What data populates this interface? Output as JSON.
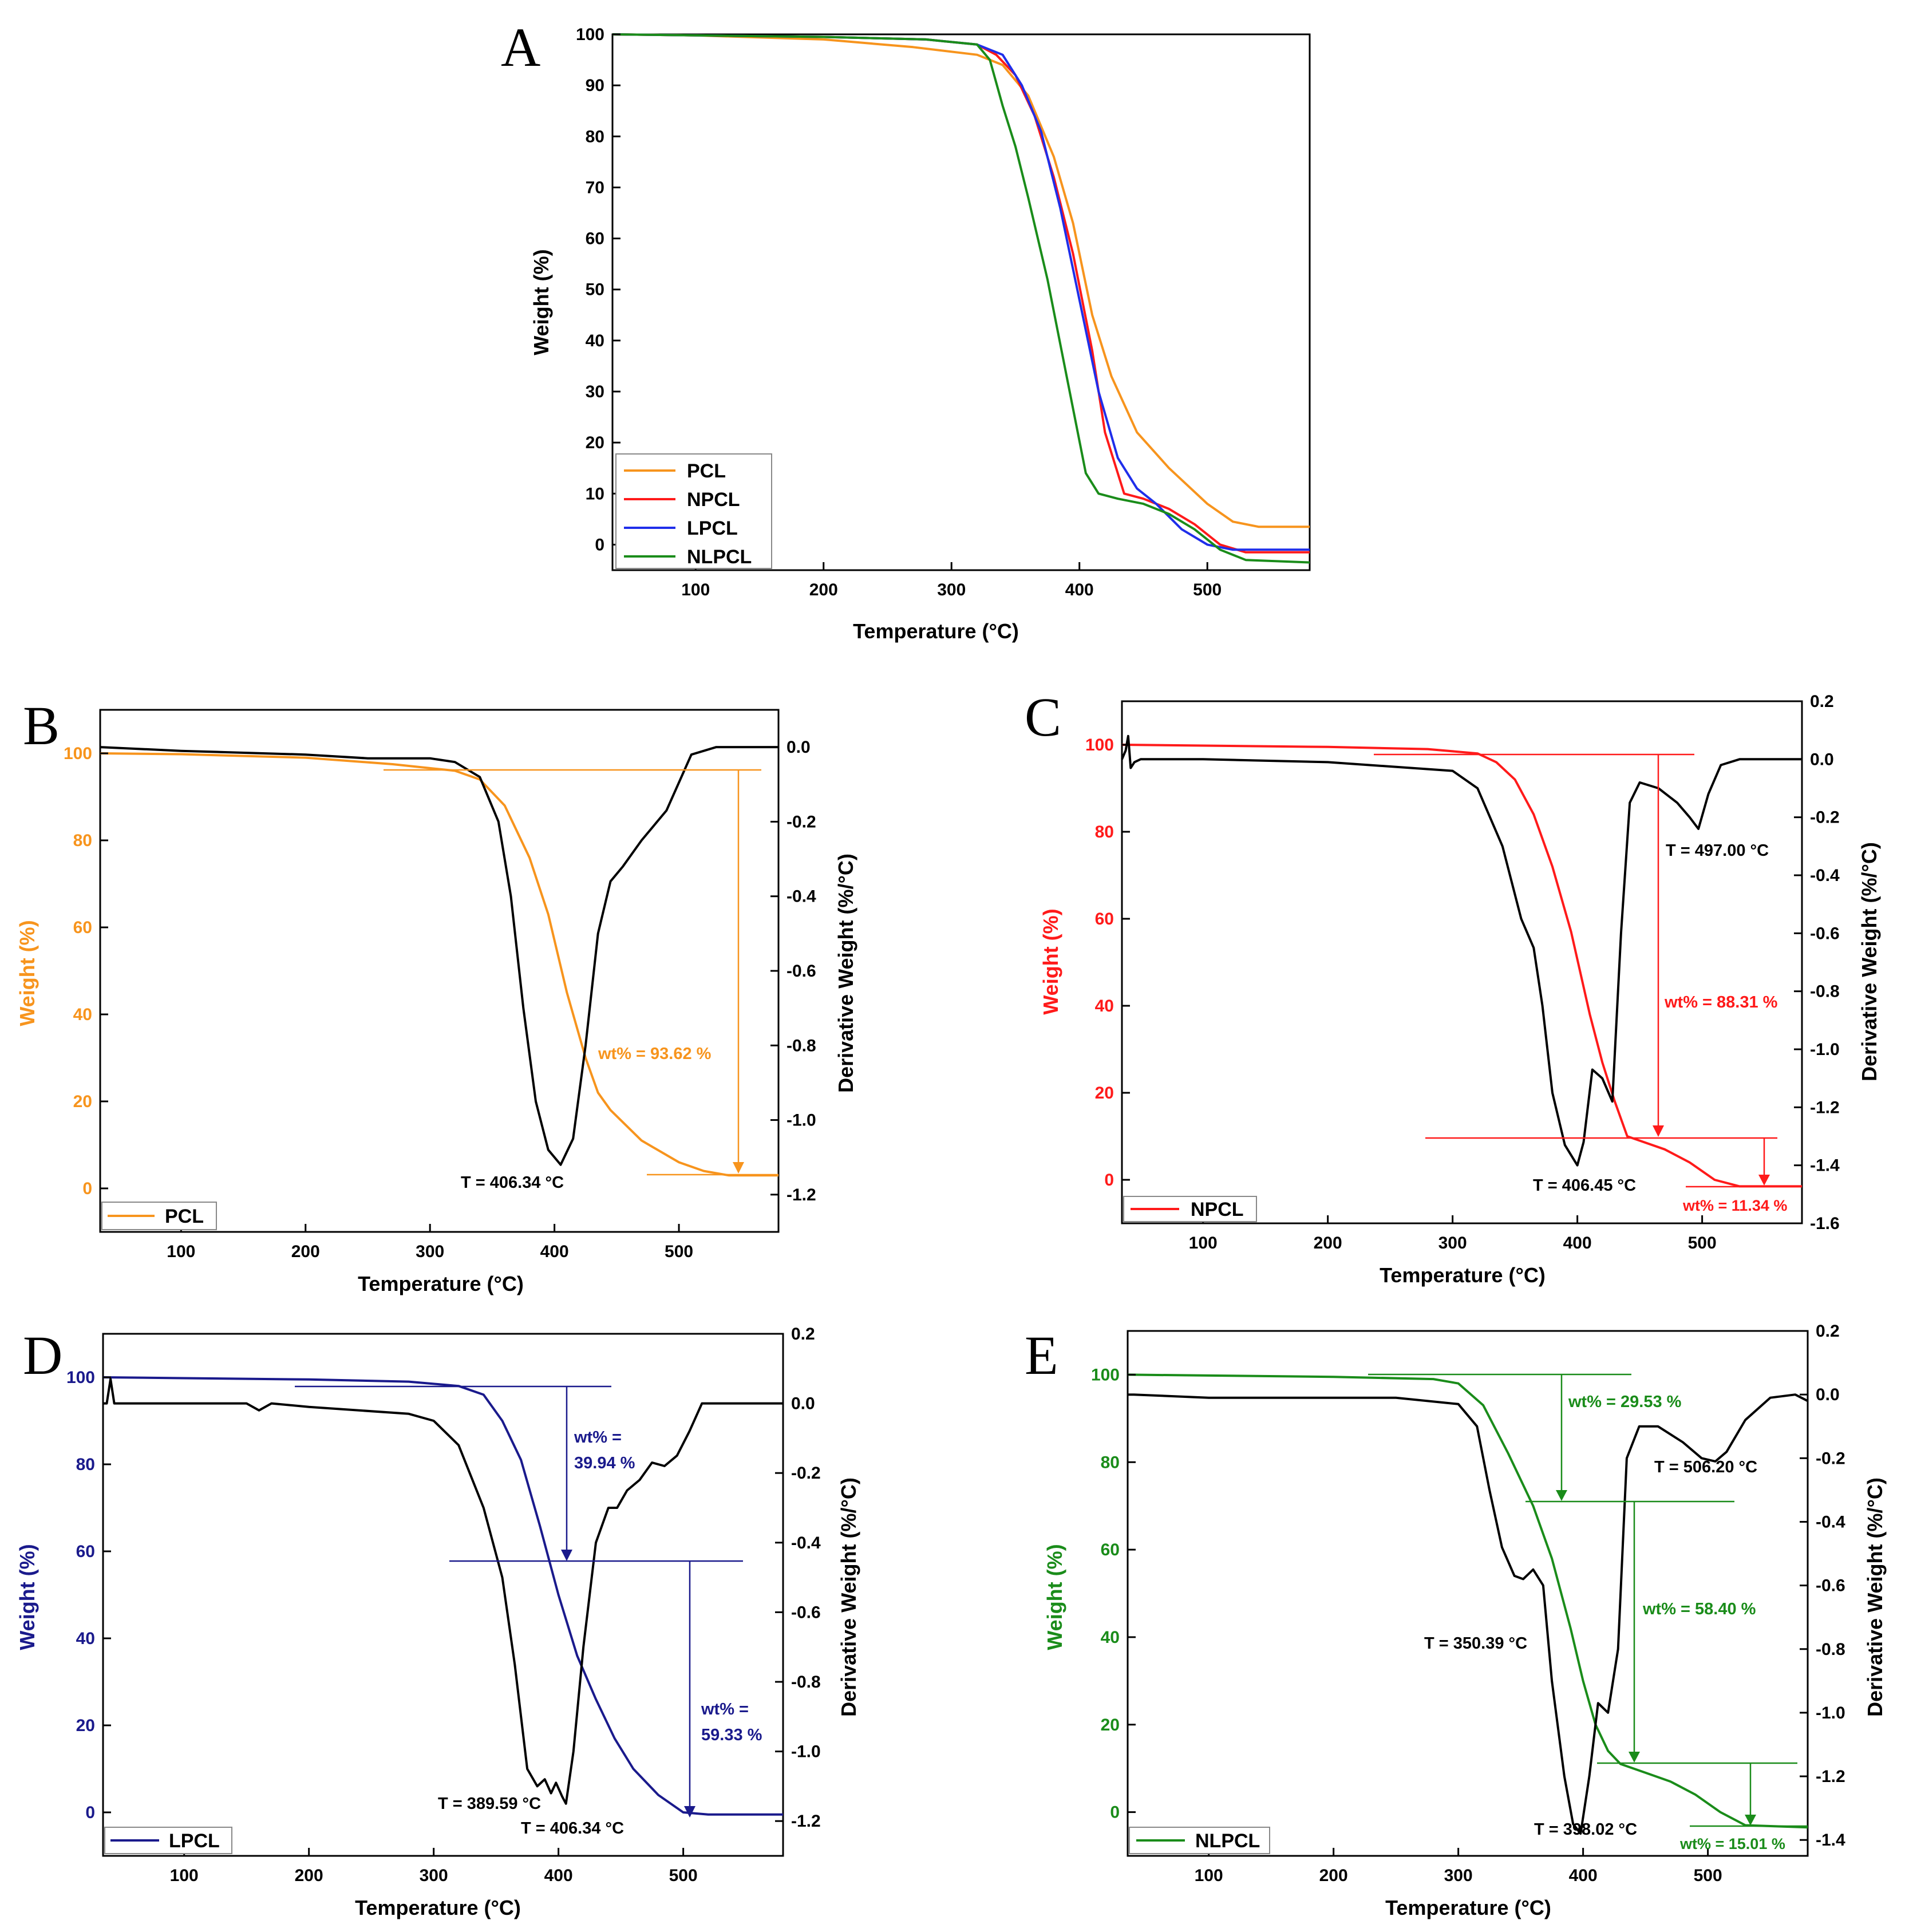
{
  "panel_letters": {
    "A": "A",
    "B": "B",
    "C": "C",
    "D": "D",
    "E": "E"
  },
  "colors": {
    "PCL": "#f7941d",
    "NPCL": "#ff1a1a",
    "LPCL": "#1a1a8c",
    "LPCL_A": "#1f2eea",
    "NLPCL": "#1a8c1a",
    "black": "#000000"
  },
  "chart_data": [
    {
      "panel": "A",
      "type": "line",
      "xlabel": "Temperature (°C)",
      "ylabel": "Weight (%)",
      "xlim": [
        35,
        580
      ],
      "ylim": [
        -5,
        100
      ],
      "xticks": [
        "100",
        "200",
        "300",
        "400",
        "500"
      ],
      "yticks": [
        "0",
        "10",
        "20",
        "30",
        "40",
        "50",
        "60",
        "70",
        "80",
        "90",
        "100"
      ],
      "legend": [
        "PCL",
        "NPCL",
        "LPCL",
        "NLPCL"
      ],
      "series": [
        {
          "name": "PCL",
          "x": [
            35,
            100,
            200,
            270,
            320,
            340,
            360,
            380,
            395,
            410,
            425,
            445,
            470,
            500,
            520,
            540,
            580
          ],
          "y": [
            100,
            99.8,
            99,
            97.5,
            96,
            94,
            88,
            76,
            63,
            45,
            33,
            22,
            15,
            8,
            4.5,
            3.5,
            3.5
          ]
        },
        {
          "name": "NPCL",
          "x": [
            35,
            100,
            200,
            280,
            320,
            335,
            350,
            365,
            380,
            395,
            410,
            420,
            435,
            450,
            470,
            490,
            510,
            530,
            580
          ],
          "y": [
            100,
            99.8,
            99.5,
            99,
            98,
            96,
            92,
            84,
            72,
            57,
            38,
            22,
            10,
            9,
            7,
            4,
            0,
            -1.5,
            -1.5
          ]
        },
        {
          "name": "LPCL",
          "x": [
            35,
            100,
            200,
            280,
            320,
            340,
            355,
            370,
            385,
            400,
            415,
            430,
            445,
            460,
            480,
            500,
            520,
            580
          ],
          "y": [
            100,
            99.8,
            99.5,
            99,
            98,
            96,
            90,
            81,
            66,
            48,
            30,
            17,
            11,
            8,
            3,
            0,
            -1,
            -1
          ]
        },
        {
          "name": "NLPCL",
          "x": [
            35,
            100,
            200,
            280,
            320,
            330,
            340,
            350,
            360,
            375,
            390,
            405,
            415,
            430,
            450,
            470,
            490,
            510,
            530,
            580
          ],
          "y": [
            100,
            99.8,
            99.5,
            99,
            98,
            95,
            86,
            78,
            68,
            52,
            33,
            14,
            10,
            9,
            8,
            6,
            3,
            -1,
            -3,
            -3.5
          ]
        }
      ]
    },
    {
      "panel": "B",
      "type": "line",
      "xlabel": "Temperature (°C)",
      "ylabel_left": "Weight (%)",
      "ylabel_right": "Derivative Weight (%/°C)",
      "xlim": [
        35,
        580
      ],
      "ylim_left": [
        -10,
        110
      ],
      "ylim_right": [
        -1.3,
        0.1
      ],
      "xticks": [
        "100",
        "200",
        "300",
        "400",
        "500"
      ],
      "yticks_left": [
        "0",
        "20",
        "40",
        "60",
        "80",
        "100"
      ],
      "yticks_right": [
        "-1.2",
        "-1.0",
        "-0.8",
        "-0.6",
        "-0.4",
        "-0.2",
        "0.0"
      ],
      "legend": [
        "PCL"
      ],
      "series": [
        {
          "name": "PCL weight",
          "axis": "left",
          "color": "#f7941d",
          "x": [
            35,
            100,
            200,
            270,
            320,
            340,
            360,
            380,
            395,
            410,
            425,
            435,
            445,
            470,
            500,
            520,
            540,
            580
          ],
          "y": [
            100,
            99.8,
            99,
            97.5,
            96,
            94,
            88,
            76,
            63,
            45,
            30,
            22,
            18,
            11,
            6,
            4,
            3,
            3
          ]
        },
        {
          "name": "PCL derivative",
          "axis": "right",
          "color": "#000000",
          "x": [
            35,
            100,
            200,
            250,
            300,
            320,
            340,
            355,
            365,
            375,
            385,
            395,
            405,
            415,
            425,
            435,
            445,
            455,
            470,
            490,
            510,
            530,
            545,
            560,
            580
          ],
          "y": [
            0.0,
            -0.01,
            -0.02,
            -0.03,
            -0.03,
            -0.04,
            -0.08,
            -0.2,
            -0.4,
            -0.7,
            -0.95,
            -1.08,
            -1.12,
            -1.05,
            -0.8,
            -0.5,
            -0.36,
            -0.32,
            -0.25,
            -0.17,
            -0.02,
            0.0,
            0.0,
            0.0,
            0.0
          ]
        }
      ],
      "annotations": [
        "wt% = 93.62 %",
        "T = 406.34 °C"
      ]
    },
    {
      "panel": "C",
      "type": "line",
      "xlabel": "Temperature (°C)",
      "ylabel_left": "Weight (%)",
      "ylabel_right": "Derivative Weight (%/°C)",
      "xlim": [
        35,
        580
      ],
      "ylim_left": [
        -10,
        110
      ],
      "ylim_right": [
        -1.6,
        0.2
      ],
      "xticks": [
        "100",
        "200",
        "300",
        "400",
        "500"
      ],
      "yticks_left": [
        "0",
        "20",
        "40",
        "60",
        "80",
        "100"
      ],
      "yticks_right": [
        "-1.6",
        "-1.4",
        "-1.2",
        "-1.0",
        "-0.8",
        "-0.6",
        "-0.4",
        "-0.2",
        "0.0",
        "0.2"
      ],
      "legend": [
        "NPCL"
      ],
      "series": [
        {
          "name": "NPCL weight",
          "axis": "left",
          "color": "#ff1a1a",
          "x": [
            35,
            100,
            200,
            280,
            320,
            335,
            350,
            365,
            380,
            395,
            410,
            420,
            430,
            440,
            450,
            470,
            490,
            510,
            530,
            580
          ],
          "y": [
            100,
            99.8,
            99.5,
            99,
            98,
            96,
            92,
            84,
            72,
            57,
            38,
            27,
            18,
            10,
            9,
            7,
            4,
            0,
            -1.5,
            -1.5
          ]
        },
        {
          "name": "NPCL derivative",
          "axis": "right",
          "color": "#000000",
          "x": [
            35,
            38,
            40,
            42,
            45,
            50,
            100,
            200,
            300,
            320,
            340,
            355,
            365,
            372,
            380,
            390,
            400,
            405,
            412,
            420,
            428,
            435,
            442,
            450,
            465,
            480,
            490,
            497,
            505,
            515,
            530,
            580
          ],
          "y": [
            0.0,
            0.03,
            0.08,
            -0.03,
            -0.01,
            0.0,
            0.0,
            -0.01,
            -0.04,
            -0.1,
            -0.3,
            -0.55,
            -0.65,
            -0.85,
            -1.15,
            -1.33,
            -1.4,
            -1.32,
            -1.07,
            -1.1,
            -1.18,
            -0.6,
            -0.15,
            -0.08,
            -0.1,
            -0.15,
            -0.2,
            -0.24,
            -0.12,
            -0.02,
            0.0,
            0.0
          ]
        }
      ],
      "annotations": [
        "T = 497.00 °C",
        "wt% = 88.31 %",
        "T = 406.45 °C",
        "wt% = 11.34 %"
      ]
    },
    {
      "panel": "D",
      "type": "line",
      "xlabel": "Temperature (°C)",
      "ylabel_left": "Weight (%)",
      "ylabel_right": "Derivative Weight (%/°C)",
      "xlim": [
        35,
        580
      ],
      "ylim_left": [
        -10,
        110
      ],
      "ylim_right": [
        -1.3,
        0.2
      ],
      "xticks": [
        "100",
        "200",
        "300",
        "400",
        "500"
      ],
      "yticks_left": [
        "0",
        "20",
        "40",
        "60",
        "80",
        "100"
      ],
      "yticks_right": [
        "-1.2",
        "-1.0",
        "-0.8",
        "-0.6",
        "-0.4",
        "-0.2",
        "0.0",
        "0.2"
      ],
      "legend": [
        "LPCL"
      ],
      "series": [
        {
          "name": "LPCL weight",
          "axis": "left",
          "color": "#1a1a8c",
          "x": [
            35,
            100,
            200,
            280,
            320,
            340,
            355,
            370,
            385,
            400,
            415,
            430,
            445,
            460,
            480,
            500,
            520,
            580
          ],
          "y": [
            100,
            99.8,
            99.5,
            99,
            98,
            96,
            90,
            81,
            66,
            50,
            36,
            26,
            17,
            10,
            4,
            0,
            -0.5,
            -0.5
          ]
        },
        {
          "name": "LPCL derivative",
          "axis": "right",
          "color": "#000000",
          "x": [
            35,
            38,
            41,
            44,
            48,
            100,
            150,
            160,
            170,
            200,
            280,
            300,
            320,
            340,
            355,
            365,
            375,
            383,
            389,
            394,
            398,
            403,
            406,
            412,
            420,
            430,
            440,
            447,
            455,
            465,
            475,
            485,
            495,
            505,
            515,
            530,
            580
          ],
          "y": [
            0.0,
            0.0,
            0.07,
            0.0,
            0.0,
            0.0,
            0.0,
            -0.02,
            0.0,
            -0.01,
            -0.03,
            -0.05,
            -0.12,
            -0.3,
            -0.5,
            -0.75,
            -1.05,
            -1.1,
            -1.08,
            -1.12,
            -1.09,
            -1.13,
            -1.15,
            -1.0,
            -0.7,
            -0.4,
            -0.3,
            -0.3,
            -0.25,
            -0.22,
            -0.17,
            -0.18,
            -0.15,
            -0.08,
            0.0,
            0.0,
            0.0
          ]
        }
      ],
      "annotations": [
        "wt% =",
        "39.94 %",
        "wt% =",
        "59.33 %",
        "T = 389.59 °C",
        "T = 406.34 °C"
      ]
    },
    {
      "panel": "E",
      "type": "line",
      "xlabel": "Temperature (°C)",
      "ylabel_left": "Weight (%)",
      "ylabel_right": "Derivative Weight (%/°C)",
      "xlim": [
        35,
        580
      ],
      "ylim_left": [
        -10,
        110
      ],
      "ylim_right": [
        -1.45,
        0.2
      ],
      "xticks": [
        "100",
        "200",
        "300",
        "400",
        "500"
      ],
      "yticks_left": [
        "0",
        "20",
        "40",
        "60",
        "80",
        "100"
      ],
      "yticks_right": [
        "-1.4",
        "-1.2",
        "-1.0",
        "-0.8",
        "-0.6",
        "-0.4",
        "-0.2",
        "0.0",
        "0.2"
      ],
      "legend": [
        "NLPCL"
      ],
      "series": [
        {
          "name": "NLPCL weight",
          "axis": "left",
          "color": "#1a8c1a",
          "x": [
            35,
            100,
            200,
            280,
            300,
            320,
            340,
            360,
            375,
            390,
            400,
            410,
            420,
            430,
            450,
            470,
            490,
            510,
            530,
            580
          ],
          "y": [
            100,
            99.8,
            99.5,
            99,
            98,
            93,
            82,
            70,
            58,
            42,
            30,
            20,
            14,
            11,
            9,
            7,
            4,
            0,
            -3,
            -3.5
          ]
        },
        {
          "name": "NLPCL derivative",
          "axis": "right",
          "color": "#000000",
          "x": [
            35,
            40,
            100,
            200,
            250,
            300,
            315,
            325,
            335,
            345,
            352,
            360,
            368,
            375,
            385,
            392,
            398,
            405,
            412,
            420,
            428,
            435,
            445,
            460,
            480,
            495,
            506,
            515,
            530,
            550,
            570,
            580
          ],
          "y": [
            0.0,
            0.0,
            -0.01,
            -0.01,
            -0.01,
            -0.03,
            -0.1,
            -0.3,
            -0.48,
            -0.57,
            -0.58,
            -0.55,
            -0.6,
            -0.9,
            -1.2,
            -1.35,
            -1.38,
            -1.2,
            -0.97,
            -1.0,
            -0.8,
            -0.2,
            -0.1,
            -0.1,
            -0.15,
            -0.2,
            -0.21,
            -0.18,
            -0.08,
            -0.01,
            0.0,
            -0.02
          ]
        }
      ],
      "annotations": [
        "wt% = 29.53 %",
        "T = 506.20 °C",
        "wt% = 58.40 %",
        "T = 350.39 °C",
        "T = 398.02 °C",
        "wt% = 15.01 %"
      ]
    }
  ]
}
